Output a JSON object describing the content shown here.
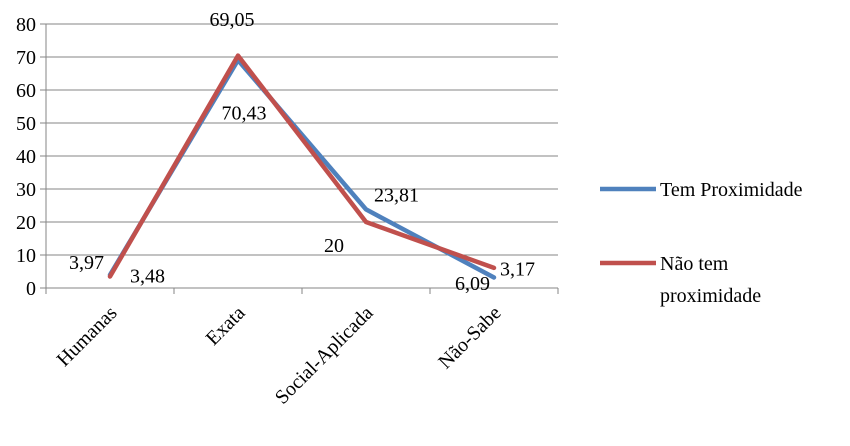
{
  "chart_data": {
    "type": "line",
    "title": "",
    "xlabel": "",
    "ylabel": "",
    "categories": [
      "Humanas",
      "Exata",
      "Social-Aplicada",
      "Não-Sabe"
    ],
    "ylim": [
      0,
      80
    ],
    "yticks": [
      0,
      10,
      20,
      30,
      40,
      50,
      60,
      70,
      80
    ],
    "grid": true,
    "legend_position": "right",
    "series": [
      {
        "name": "Tem Proximidade",
        "color": "#4F81BD",
        "values": [
          3.97,
          69.05,
          23.81,
          3.17
        ],
        "labels": [
          "3,97",
          "69,05",
          "23,81",
          "3,17"
        ]
      },
      {
        "name": "Não tem proximidade",
        "legend_lines": [
          "Não tem",
          "proximidade"
        ],
        "color": "#C0504D",
        "values": [
          3.48,
          70.43,
          20,
          6.09
        ],
        "labels": [
          "3,48",
          "70,43",
          "20",
          "6,09"
        ]
      }
    ]
  }
}
